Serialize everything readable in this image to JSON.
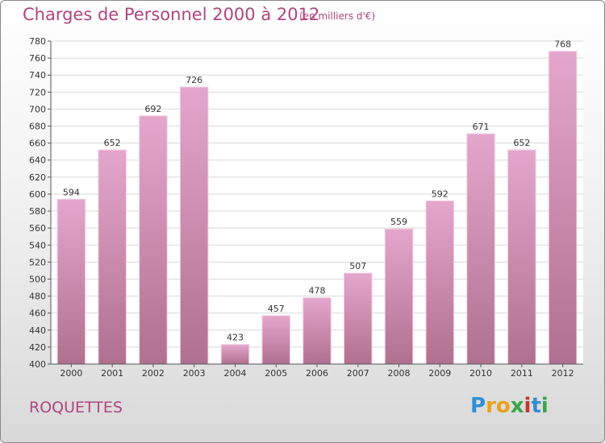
{
  "header": {
    "title": "Charges de Personnel 2000 à 2012",
    "subtitle": "(en milliers d'€)"
  },
  "commune": "ROQUETTES",
  "logo": {
    "letters": [
      "P",
      "r",
      "o",
      "x",
      "i",
      "t",
      "i"
    ],
    "colors": [
      "#2f8fd6",
      "#e8a020",
      "#e8a020",
      "#3aa34a",
      "#c0392b",
      "#2f8fd6",
      "#3aa34a"
    ]
  },
  "colors": {
    "bar_fill_top": "#e4a6cc",
    "bar_fill_bottom": "#b0708f",
    "text_accent": "#b0457f"
  },
  "chart_data": {
    "type": "bar",
    "categories": [
      "2000",
      "2001",
      "2002",
      "2003",
      "2004",
      "2005",
      "2006",
      "2007",
      "2008",
      "2009",
      "2010",
      "2011",
      "2012"
    ],
    "values": [
      594,
      652,
      692,
      726,
      423,
      457,
      478,
      507,
      559,
      592,
      671,
      652,
      768
    ],
    "ylim": [
      400,
      780
    ],
    "yticks": [
      400,
      420,
      440,
      460,
      480,
      500,
      520,
      540,
      560,
      580,
      600,
      620,
      640,
      660,
      680,
      700,
      720,
      740,
      760,
      780
    ],
    "grid": true
  }
}
